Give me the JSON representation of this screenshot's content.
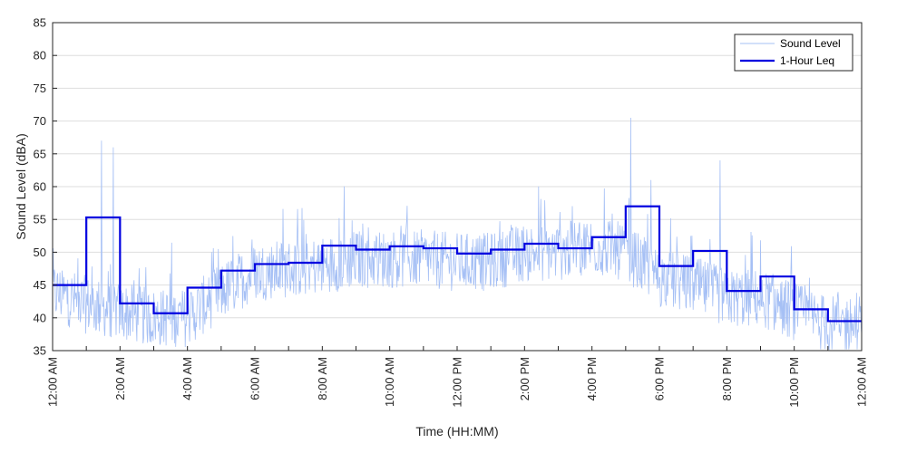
{
  "chart_data": {
    "type": "line",
    "title": "",
    "xlabel": "Time (HH:MM)",
    "ylabel": "Sound Level (dBA)",
    "ylim": [
      35,
      85
    ],
    "yticks": [
      35,
      40,
      45,
      50,
      55,
      60,
      65,
      70,
      75,
      80,
      85
    ],
    "xlim_hours": [
      0,
      24
    ],
    "xtick_hours": [
      0,
      2,
      4,
      6,
      8,
      10,
      12,
      14,
      16,
      18,
      20,
      22,
      24
    ],
    "xtick_labels": [
      "12:00 AM",
      "2:00 AM",
      "4:00 AM",
      "6:00 AM",
      "8:00 AM",
      "10:00 AM",
      "12:00 PM",
      "2:00 PM",
      "4:00 PM",
      "6:00 PM",
      "8:00 PM",
      "10:00 PM",
      "12:00 AM"
    ],
    "grid": "horizontal",
    "legend_position": "top-right",
    "series": [
      {
        "name": "Sound Level",
        "color": "#a6c0f5",
        "description_values": "noisy per-sample trace; hourly baseline values listed",
        "hourly_baseline": [
          44,
          42,
          41,
          40,
          40,
          44,
          47,
          47.5,
          48,
          49,
          49,
          49,
          48.5,
          48.5,
          50,
          50,
          51,
          50,
          46,
          45,
          43,
          43,
          41,
          39
        ],
        "peaks": [
          {
            "hour": 1.45,
            "value": 67
          },
          {
            "hour": 1.8,
            "value": 66
          },
          {
            "hour": 17.15,
            "value": 70.5
          },
          {
            "hour": 19.8,
            "value": 64
          },
          {
            "hour": 17.75,
            "value": 61
          }
        ]
      },
      {
        "name": "1-Hour Leq",
        "color": "#0000e0",
        "hours": [
          0,
          1,
          2,
          3,
          4,
          5,
          6,
          7,
          8,
          9,
          10,
          11,
          12,
          13,
          14,
          15,
          16,
          17,
          18,
          19,
          20,
          21,
          22,
          23
        ],
        "values": [
          45.0,
          55.3,
          42.2,
          40.7,
          44.6,
          47.2,
          48.2,
          48.4,
          51.0,
          50.4,
          50.9,
          50.6,
          49.8,
          50.4,
          51.3,
          50.6,
          52.3,
          57.0,
          47.9,
          50.2,
          44.1,
          46.3,
          41.3,
          39.5
        ]
      }
    ]
  }
}
